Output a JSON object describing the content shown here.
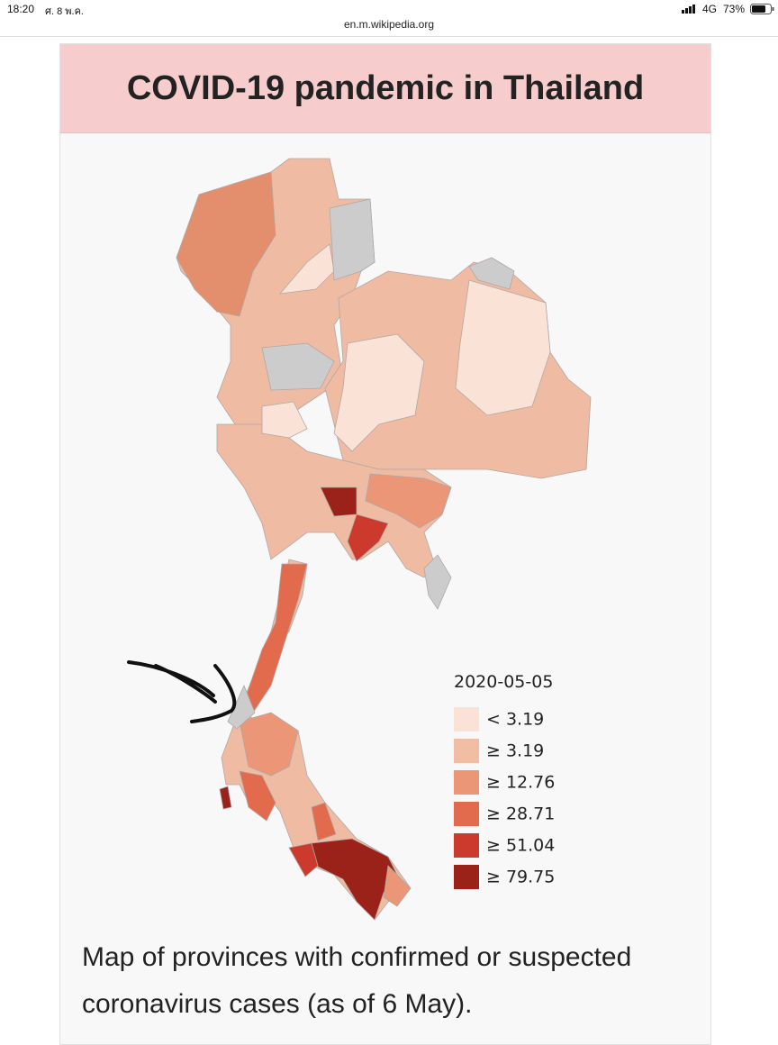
{
  "status_bar": {
    "time": "18:20",
    "date": "ศ. 8 พ.ค.",
    "network": "4G",
    "battery": "73%"
  },
  "address_bar": {
    "url": "en.m.wikipedia.org"
  },
  "infobox": {
    "title": "COVID-19 pandemic in Thailand",
    "legend": {
      "title": "2020-05-05",
      "items": [
        {
          "label": "< 3.19",
          "color": "#fbe2d6"
        },
        {
          "label": "≥ 3.19",
          "color": "#f2bda5"
        },
        {
          "label": "≥ 12.76",
          "color": "#eb9677"
        },
        {
          "label": "≥ 28.71",
          "color": "#e36b4d"
        },
        {
          "label": "≥ 51.04",
          "color": "#cc3a2d"
        },
        {
          "label": "≥ 79.75",
          "color": "#9a2219"
        }
      ]
    },
    "caption": "Map of provinces with confirmed or suspected coronavirus cases (as of 6 May)."
  }
}
